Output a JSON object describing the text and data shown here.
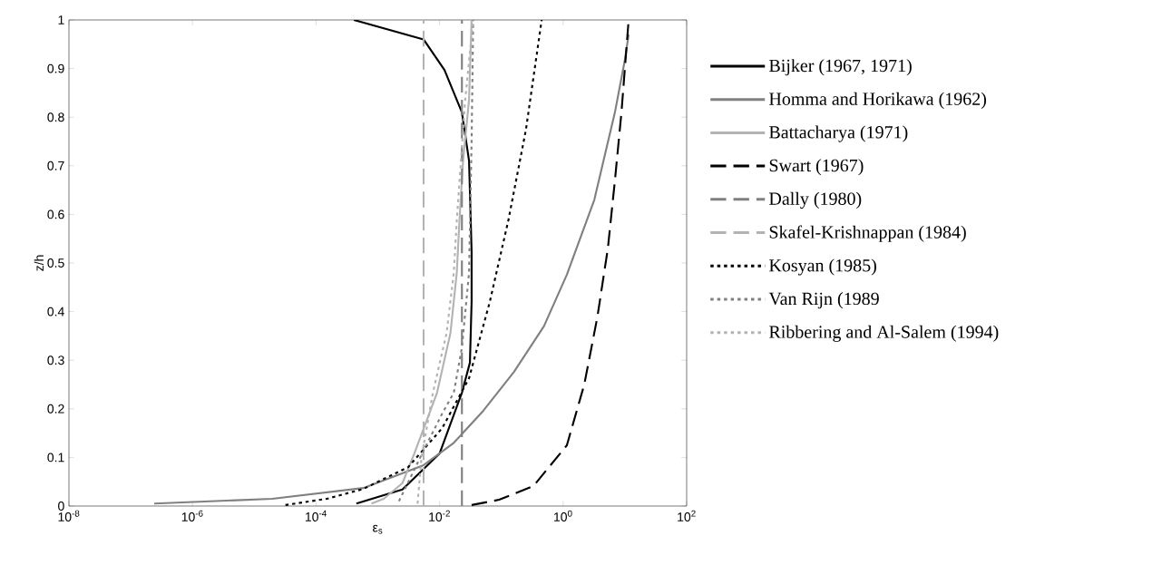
{
  "chart_data": {
    "type": "line",
    "xlabel": "ε$_{s}$",
    "ylabel": "z/h",
    "log": "x",
    "xlim": [
      1e-08,
      100
    ],
    "ylim": [
      0,
      1
    ],
    "xticks": [
      {
        "value": 1e-08,
        "label": "10$^{-8}$"
      },
      {
        "value": 1e-06,
        "label": "10$^{-6}$"
      },
      {
        "value": 0.0001,
        "label": "10$^{-4}$"
      },
      {
        "value": 0.01,
        "label": "10$^{-2}$"
      },
      {
        "value": 1,
        "label": "10$^{0}$"
      },
      {
        "value": 100,
        "label": "10$^{2}$"
      }
    ],
    "yticks": [
      0,
      0.1,
      0.2,
      0.3,
      0.4,
      0.5,
      0.6,
      0.7,
      0.8,
      0.9,
      1
    ],
    "legend": "right",
    "grid": false,
    "series": [
      {
        "name": "Bijker (1967, 1971)",
        "color": "#000000",
        "line_style": "solid",
        "x": [
          0.00045,
          0.0025,
          0.01,
          0.023,
          0.031,
          0.033,
          0.033,
          0.03,
          0.023,
          0.012,
          0.0055,
          0.00041
        ],
        "values": [
          0.005,
          0.034,
          0.108,
          0.233,
          0.295,
          0.42,
          0.524,
          0.71,
          0.81,
          0.897,
          0.96,
          1
        ]
      },
      {
        "name": "Homma and Horikawa (1962)",
        "color": "#808080",
        "line_style": "solid",
        "x": [
          2.4e-07,
          1.95e-05,
          0.00058,
          0.0055,
          0.017,
          0.051,
          0.16,
          0.49,
          1.15,
          3.2,
          6.9,
          10,
          11.5
        ],
        "values": [
          0.005,
          0.015,
          0.037,
          0.084,
          0.13,
          0.196,
          0.276,
          0.37,
          0.476,
          0.63,
          0.81,
          0.918,
          0.97
        ]
      },
      {
        "name": "Battacharya (1971)",
        "color": "#b3b3b3",
        "line_style": "solid",
        "x": [
          0.00079,
          0.00125,
          0.0025,
          0.0039,
          0.0091,
          0.015,
          0.019,
          0.021,
          0.024,
          0.03,
          0.033
        ],
        "values": [
          0.005,
          0.015,
          0.047,
          0.108,
          0.233,
          0.356,
          0.48,
          0.588,
          0.71,
          0.836,
          1
        ]
      },
      {
        "name": "Swart (1967)",
        "color": "#000000",
        "line_style": "dashed",
        "x": [
          0.033,
          0.092,
          0.33,
          1.15,
          2.2,
          3.6,
          5.3,
          6.9,
          8.8,
          11.5
        ],
        "values": [
          0.002,
          0.013,
          0.041,
          0.125,
          0.25,
          0.39,
          0.53,
          0.67,
          0.81,
          1
        ]
      },
      {
        "name": "Dally (1980)",
        "color": "#808080",
        "line_style": "dashed",
        "x": [
          0.023,
          0.023
        ],
        "values": [
          0,
          1
        ]
      },
      {
        "name": "Skafel-Krishnappan (1984)",
        "color": "#b3b3b3",
        "line_style": "dashed",
        "x": [
          0.0055,
          0.0055
        ],
        "values": [
          0,
          1
        ]
      },
      {
        "name": "Kosyan (1985)",
        "color": "#000000",
        "line_style": "dotted",
        "x": [
          3.2e-05,
          0.00015,
          0.00058,
          0.0031,
          0.011,
          0.03,
          0.065,
          0.13,
          0.25,
          0.45
        ],
        "values": [
          0.002,
          0.015,
          0.035,
          0.08,
          0.16,
          0.263,
          0.42,
          0.588,
          0.774,
          1
        ]
      },
      {
        "name": "Van Rijn (1989",
        "color": "#808080",
        "line_style": "dotted",
        "x": [
          0.0022,
          0.0055,
          0.011,
          0.017,
          0.023,
          0.03,
          0.033,
          0.035
        ],
        "values": [
          0.01,
          0.114,
          0.19,
          0.233,
          0.326,
          0.48,
          0.75,
          1
        ]
      },
      {
        "name": "Ribbering and Al-Salem (1994)",
        "color": "#b3b3b3",
        "line_style": "dotted",
        "x": [
          0.0044,
          0.0051,
          0.0078,
          0.013,
          0.017,
          0.019,
          0.026,
          0.035
        ],
        "values": [
          0.005,
          0.1,
          0.233,
          0.356,
          0.48,
          0.588,
          0.836,
          1
        ]
      }
    ]
  }
}
